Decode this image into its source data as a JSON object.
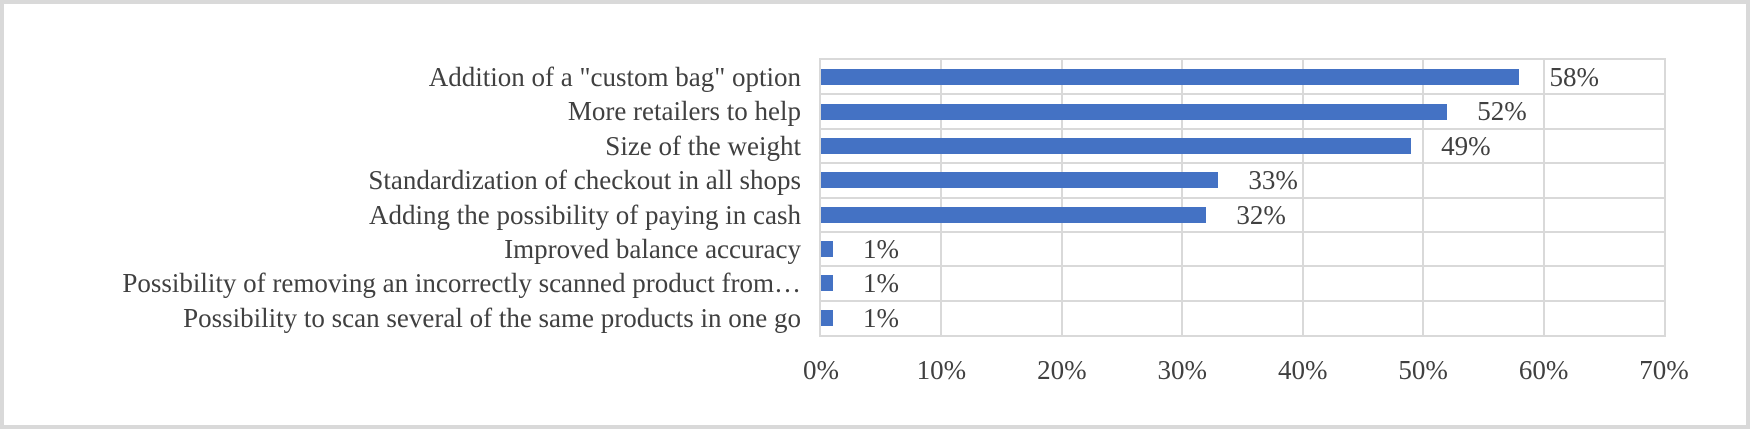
{
  "chart_data": {
    "type": "bar",
    "orientation": "horizontal",
    "title": "",
    "xlabel": "",
    "ylabel": "",
    "categories": [
      "Addition of a \"custom bag\" option",
      "More retailers to help",
      "Size of the weight",
      "Standardization of checkout in all shops",
      "Adding the possibility of paying in cash",
      "Improved balance accuracy",
      "Possibility of removing an incorrectly scanned product from…",
      "Possibility to scan several of the same products in one go"
    ],
    "values": [
      58,
      52,
      49,
      33,
      32,
      1,
      1,
      1
    ],
    "data_labels": [
      "58%",
      "52%",
      "49%",
      "33%",
      "32%",
      "1%",
      "1%",
      "1%"
    ],
    "x_ticks": [
      "0%",
      "10%",
      "20%",
      "30%",
      "40%",
      "50%",
      "60%",
      "70%"
    ],
    "xlim": [
      0,
      70
    ],
    "grid": true,
    "legend_position": "none",
    "colors": {
      "bar": "#4472C4",
      "gridline": "#d9d9d9",
      "text": "#404040",
      "frame": "#d9d9d9",
      "background": "#ffffff"
    }
  }
}
